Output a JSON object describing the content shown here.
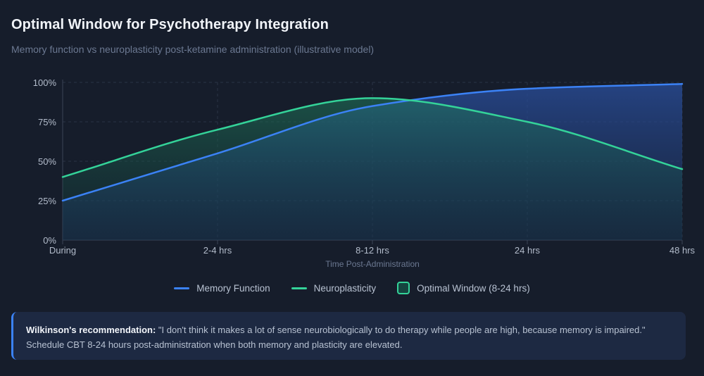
{
  "header": {
    "title": "Optimal Window for Psychotherapy Integration",
    "subtitle": "Memory function vs neuroplasticity post-ketamine administration (illustrative model)"
  },
  "chart_data": {
    "type": "area",
    "categories": [
      "During",
      "2-4 hrs",
      "8-12 hrs",
      "24 hrs",
      "48 hrs"
    ],
    "xlabel": "Time Post-Administration",
    "ylabel": "",
    "ylim": [
      0,
      100
    ],
    "yticks": [
      "0%",
      "25%",
      "50%",
      "75%",
      "100%"
    ],
    "grid": true,
    "series": [
      {
        "name": "Memory Function",
        "values": [
          25,
          55,
          85,
          96,
          99
        ],
        "color": "#3b82f6"
      },
      {
        "name": "Neuroplasticity",
        "values": [
          40,
          70,
          90,
          75,
          45
        ],
        "color": "#34d399"
      }
    ],
    "highlight": {
      "name": "Optimal Window (8-24 hrs)",
      "from": "8-12 hrs",
      "to": "24 hrs",
      "color": "#34d399"
    },
    "legend_position": "bottom"
  },
  "callout": {
    "label": "Wilkinson's recommendation:",
    "text": " \"I don't think it makes a lot of sense neurobiologically to do therapy while people are high, because memory is impaired.\" Schedule CBT 8-24 hours post-administration when both memory and plasticity are elevated.",
    "accent_color": "#3b82f6"
  }
}
